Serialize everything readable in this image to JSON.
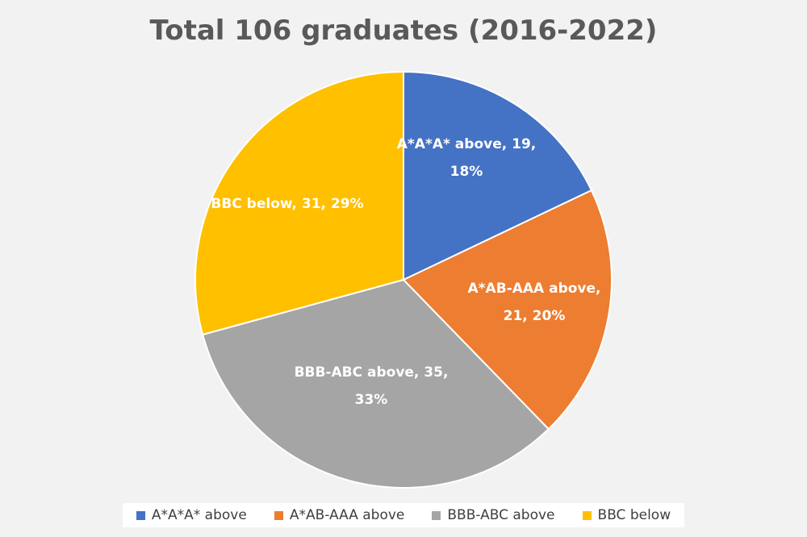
{
  "chart_data": {
    "type": "pie",
    "title": "Total 106 graduates (2016-2022)",
    "slices": [
      {
        "name": "A*A*A* above",
        "value": 19,
        "percent": "18%",
        "color": "#4472C4",
        "label_lines": [
          "A*A*A* above, 19,",
          "18%"
        ]
      },
      {
        "name": "A*AB-AAA above",
        "value": 21,
        "percent": "20%",
        "color": "#ED7D31",
        "label_lines": [
          "A*AB-AAA above,",
          "21, 20%"
        ]
      },
      {
        "name": "BBB-ABC above",
        "value": 35,
        "percent": "33%",
        "color": "#A5A5A5",
        "label_lines": [
          "BBB-ABC above, 35,",
          "33%"
        ]
      },
      {
        "name": "BBC below",
        "value": 31,
        "percent": "29%",
        "color": "#FFC000",
        "label_lines": [
          "BBC below, 31, 29%"
        ]
      }
    ],
    "legend_position": "bottom"
  }
}
